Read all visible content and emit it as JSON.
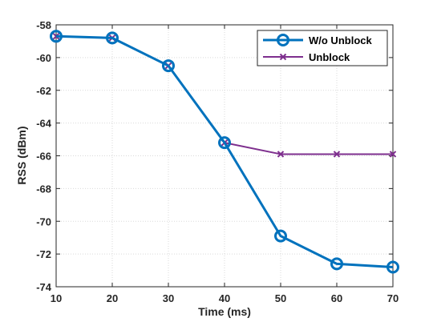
{
  "chart_data": {
    "type": "line",
    "title": "",
    "xlabel": "Time (ms)",
    "ylabel": "RSS (dBm)",
    "xlim": [
      10,
      70
    ],
    "ylim": [
      -74,
      -58
    ],
    "x_ticks": [
      10,
      20,
      30,
      40,
      50,
      60,
      70
    ],
    "y_ticks": [
      -58,
      -60,
      -62,
      -64,
      -66,
      -68,
      -70,
      -72,
      -74
    ],
    "grid": true,
    "legend_position": "top-right",
    "x": [
      10,
      20,
      30,
      40,
      50,
      60,
      70
    ],
    "series": [
      {
        "name": "W/o Unblock",
        "values": [
          -58.7,
          -58.8,
          -60.5,
          -65.2,
          -70.9,
          -72.6,
          -72.8
        ],
        "color": "#0072BD",
        "marker": "circle"
      },
      {
        "name": "Unblock",
        "values": [
          -58.7,
          -58.8,
          -60.5,
          -65.2,
          -65.9,
          -65.9,
          -65.9
        ],
        "color": "#7E2F8E",
        "marker": "x"
      }
    ]
  }
}
